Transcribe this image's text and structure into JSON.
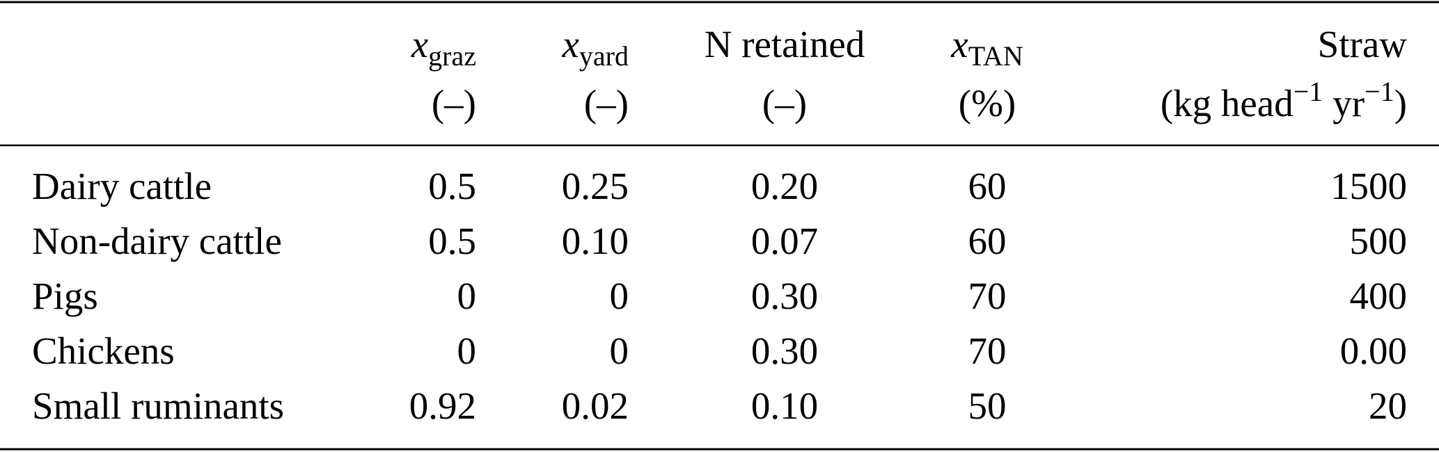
{
  "table": {
    "header": [
      {
        "label": ""
      },
      {
        "symbol": "x",
        "sub": "graz",
        "unit": "(–)"
      },
      {
        "symbol": "x",
        "sub": "yard",
        "unit": "(–)"
      },
      {
        "label": "N retained",
        "unit": "(–)"
      },
      {
        "symbol": "x",
        "sub": "TAN",
        "unit": "(%)"
      },
      {
        "label": "Straw",
        "unit_parts": [
          "(kg head",
          "−1",
          "yr",
          "−1",
          ")"
        ]
      }
    ],
    "rows": [
      [
        "Dairy cattle",
        "0.5",
        "0.25",
        "0.20",
        "60",
        "1500"
      ],
      [
        "Non-dairy cattle",
        "0.5",
        "0.10",
        "0.07",
        "60",
        "500"
      ],
      [
        "Pigs",
        "0",
        "0",
        "0.30",
        "70",
        "400"
      ],
      [
        "Chickens",
        "0",
        "0",
        "0.30",
        "70",
        "0.00"
      ],
      [
        "Small ruminants",
        "0.92",
        "0.02",
        "0.10",
        "50",
        "20"
      ]
    ]
  }
}
